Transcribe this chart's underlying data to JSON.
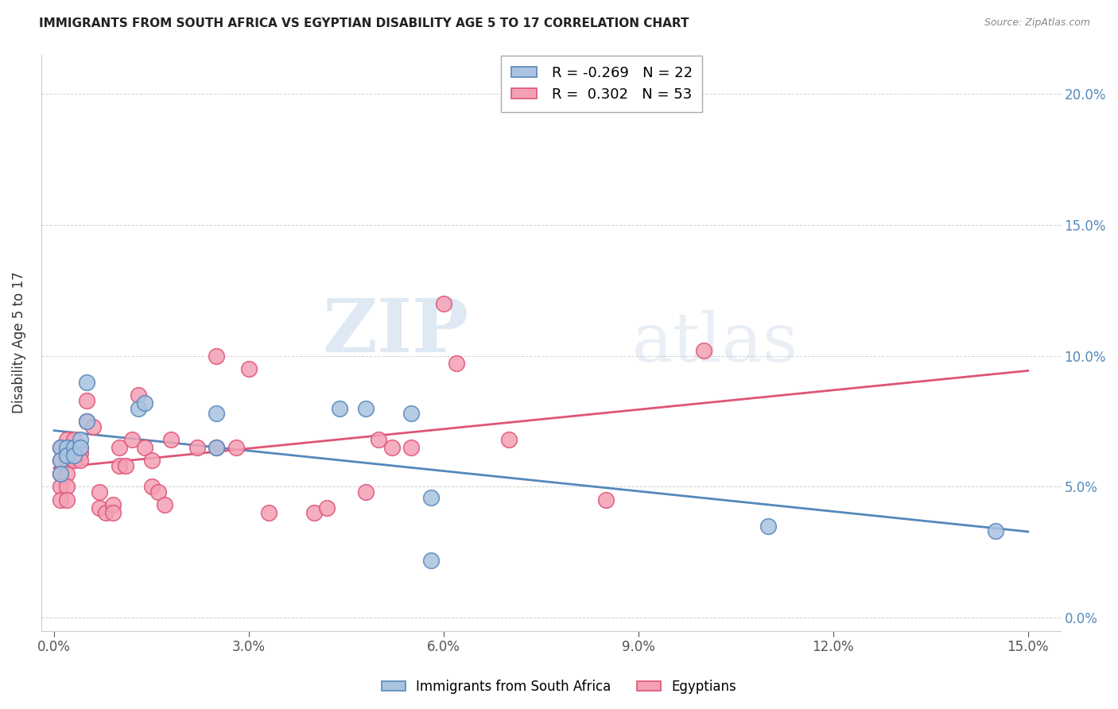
{
  "title": "IMMIGRANTS FROM SOUTH AFRICA VS EGYPTIAN DISABILITY AGE 5 TO 17 CORRELATION CHART",
  "source": "Source: ZipAtlas.com",
  "xlabel_values": [
    0.0,
    0.03,
    0.06,
    0.09,
    0.12,
    0.15
  ],
  "ylabel_values": [
    0.0,
    0.05,
    0.1,
    0.15,
    0.2
  ],
  "xlim": [
    -0.002,
    0.155
  ],
  "ylim": [
    -0.005,
    0.215
  ],
  "ylabel": "Disability Age 5 to 17",
  "legend_label1": "Immigrants from South Africa",
  "legend_label2": "Egyptians",
  "r1": "-0.269",
  "n1": "22",
  "r2": "0.302",
  "n2": "53",
  "color_blue": "#aac4e0",
  "color_pink": "#f4a0b5",
  "line_color_blue": "#5588bb",
  "line_color_pink": "#dd5577",
  "watermark_zip": "ZIP",
  "watermark_atlas": "atlas",
  "south_africa_x": [
    0.001,
    0.001,
    0.001,
    0.002,
    0.002,
    0.003,
    0.003,
    0.004,
    0.004,
    0.005,
    0.005,
    0.013,
    0.014,
    0.025,
    0.025,
    0.044,
    0.048,
    0.055,
    0.058,
    0.058,
    0.11,
    0.145
  ],
  "south_africa_y": [
    0.065,
    0.06,
    0.055,
    0.065,
    0.062,
    0.065,
    0.062,
    0.068,
    0.065,
    0.09,
    0.075,
    0.08,
    0.082,
    0.065,
    0.078,
    0.08,
    0.08,
    0.078,
    0.046,
    0.022,
    0.035,
    0.033
  ],
  "egypt_x": [
    0.001,
    0.001,
    0.001,
    0.001,
    0.001,
    0.002,
    0.002,
    0.002,
    0.002,
    0.002,
    0.002,
    0.003,
    0.003,
    0.003,
    0.004,
    0.004,
    0.004,
    0.005,
    0.005,
    0.006,
    0.007,
    0.007,
    0.008,
    0.009,
    0.009,
    0.01,
    0.01,
    0.011,
    0.012,
    0.013,
    0.014,
    0.015,
    0.015,
    0.016,
    0.017,
    0.018,
    0.022,
    0.025,
    0.025,
    0.028,
    0.03,
    0.033,
    0.04,
    0.042,
    0.048,
    0.05,
    0.052,
    0.055,
    0.06,
    0.062,
    0.07,
    0.085,
    0.1
  ],
  "egypt_y": [
    0.065,
    0.06,
    0.055,
    0.05,
    0.045,
    0.068,
    0.063,
    0.06,
    0.055,
    0.05,
    0.045,
    0.068,
    0.063,
    0.06,
    0.065,
    0.063,
    0.06,
    0.083,
    0.075,
    0.073,
    0.048,
    0.042,
    0.04,
    0.043,
    0.04,
    0.065,
    0.058,
    0.058,
    0.068,
    0.085,
    0.065,
    0.06,
    0.05,
    0.048,
    0.043,
    0.068,
    0.065,
    0.065,
    0.1,
    0.065,
    0.095,
    0.04,
    0.04,
    0.042,
    0.048,
    0.068,
    0.065,
    0.065,
    0.12,
    0.097,
    0.068,
    0.045,
    0.102
  ]
}
